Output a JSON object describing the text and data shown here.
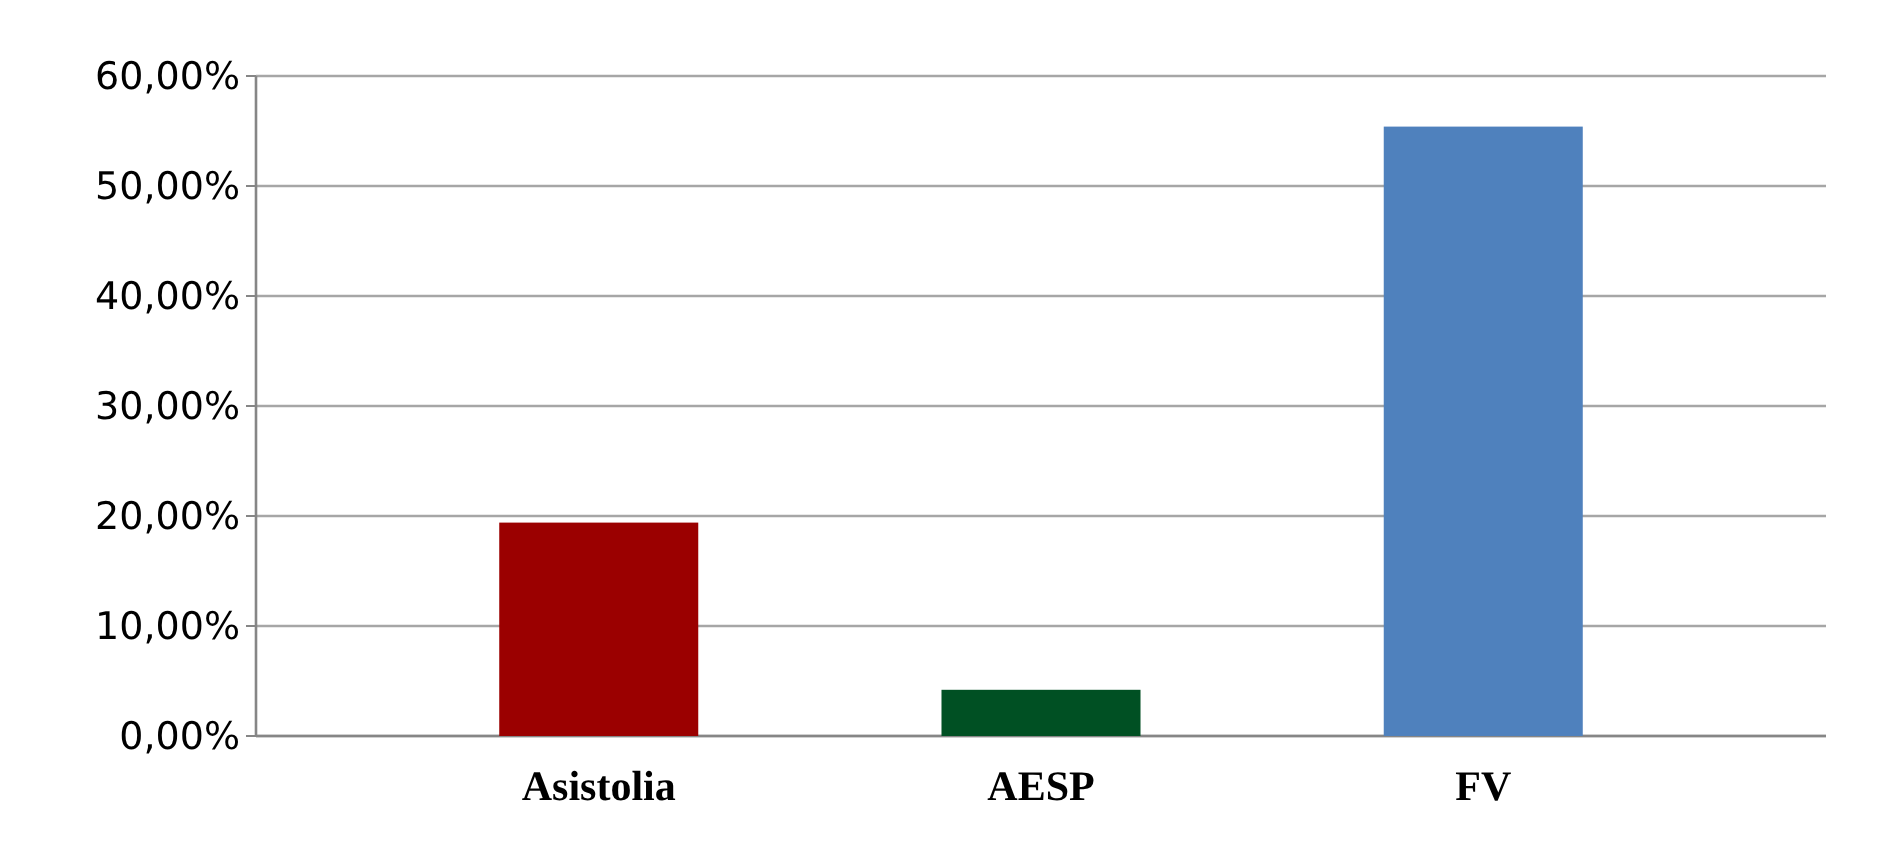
{
  "chart_data": {
    "type": "bar",
    "categories": [
      "Asistolia",
      "AESP",
      "FV"
    ],
    "values": [
      19.4,
      4.2,
      55.4
    ],
    "colors": [
      "#9b0000",
      "#005023",
      "#4f81bd"
    ],
    "ylim": [
      0,
      60
    ],
    "yticks": [
      {
        "value": 0,
        "label": "0,00%"
      },
      {
        "value": 10,
        "label": "10,00%"
      },
      {
        "value": 20,
        "label": "20,00%"
      },
      {
        "value": 30,
        "label": "30,00%"
      },
      {
        "value": 40,
        "label": "40,00%"
      },
      {
        "value": 50,
        "label": "50,00%"
      },
      {
        "value": 60,
        "label": "60,00%"
      }
    ],
    "grid": "y"
  }
}
